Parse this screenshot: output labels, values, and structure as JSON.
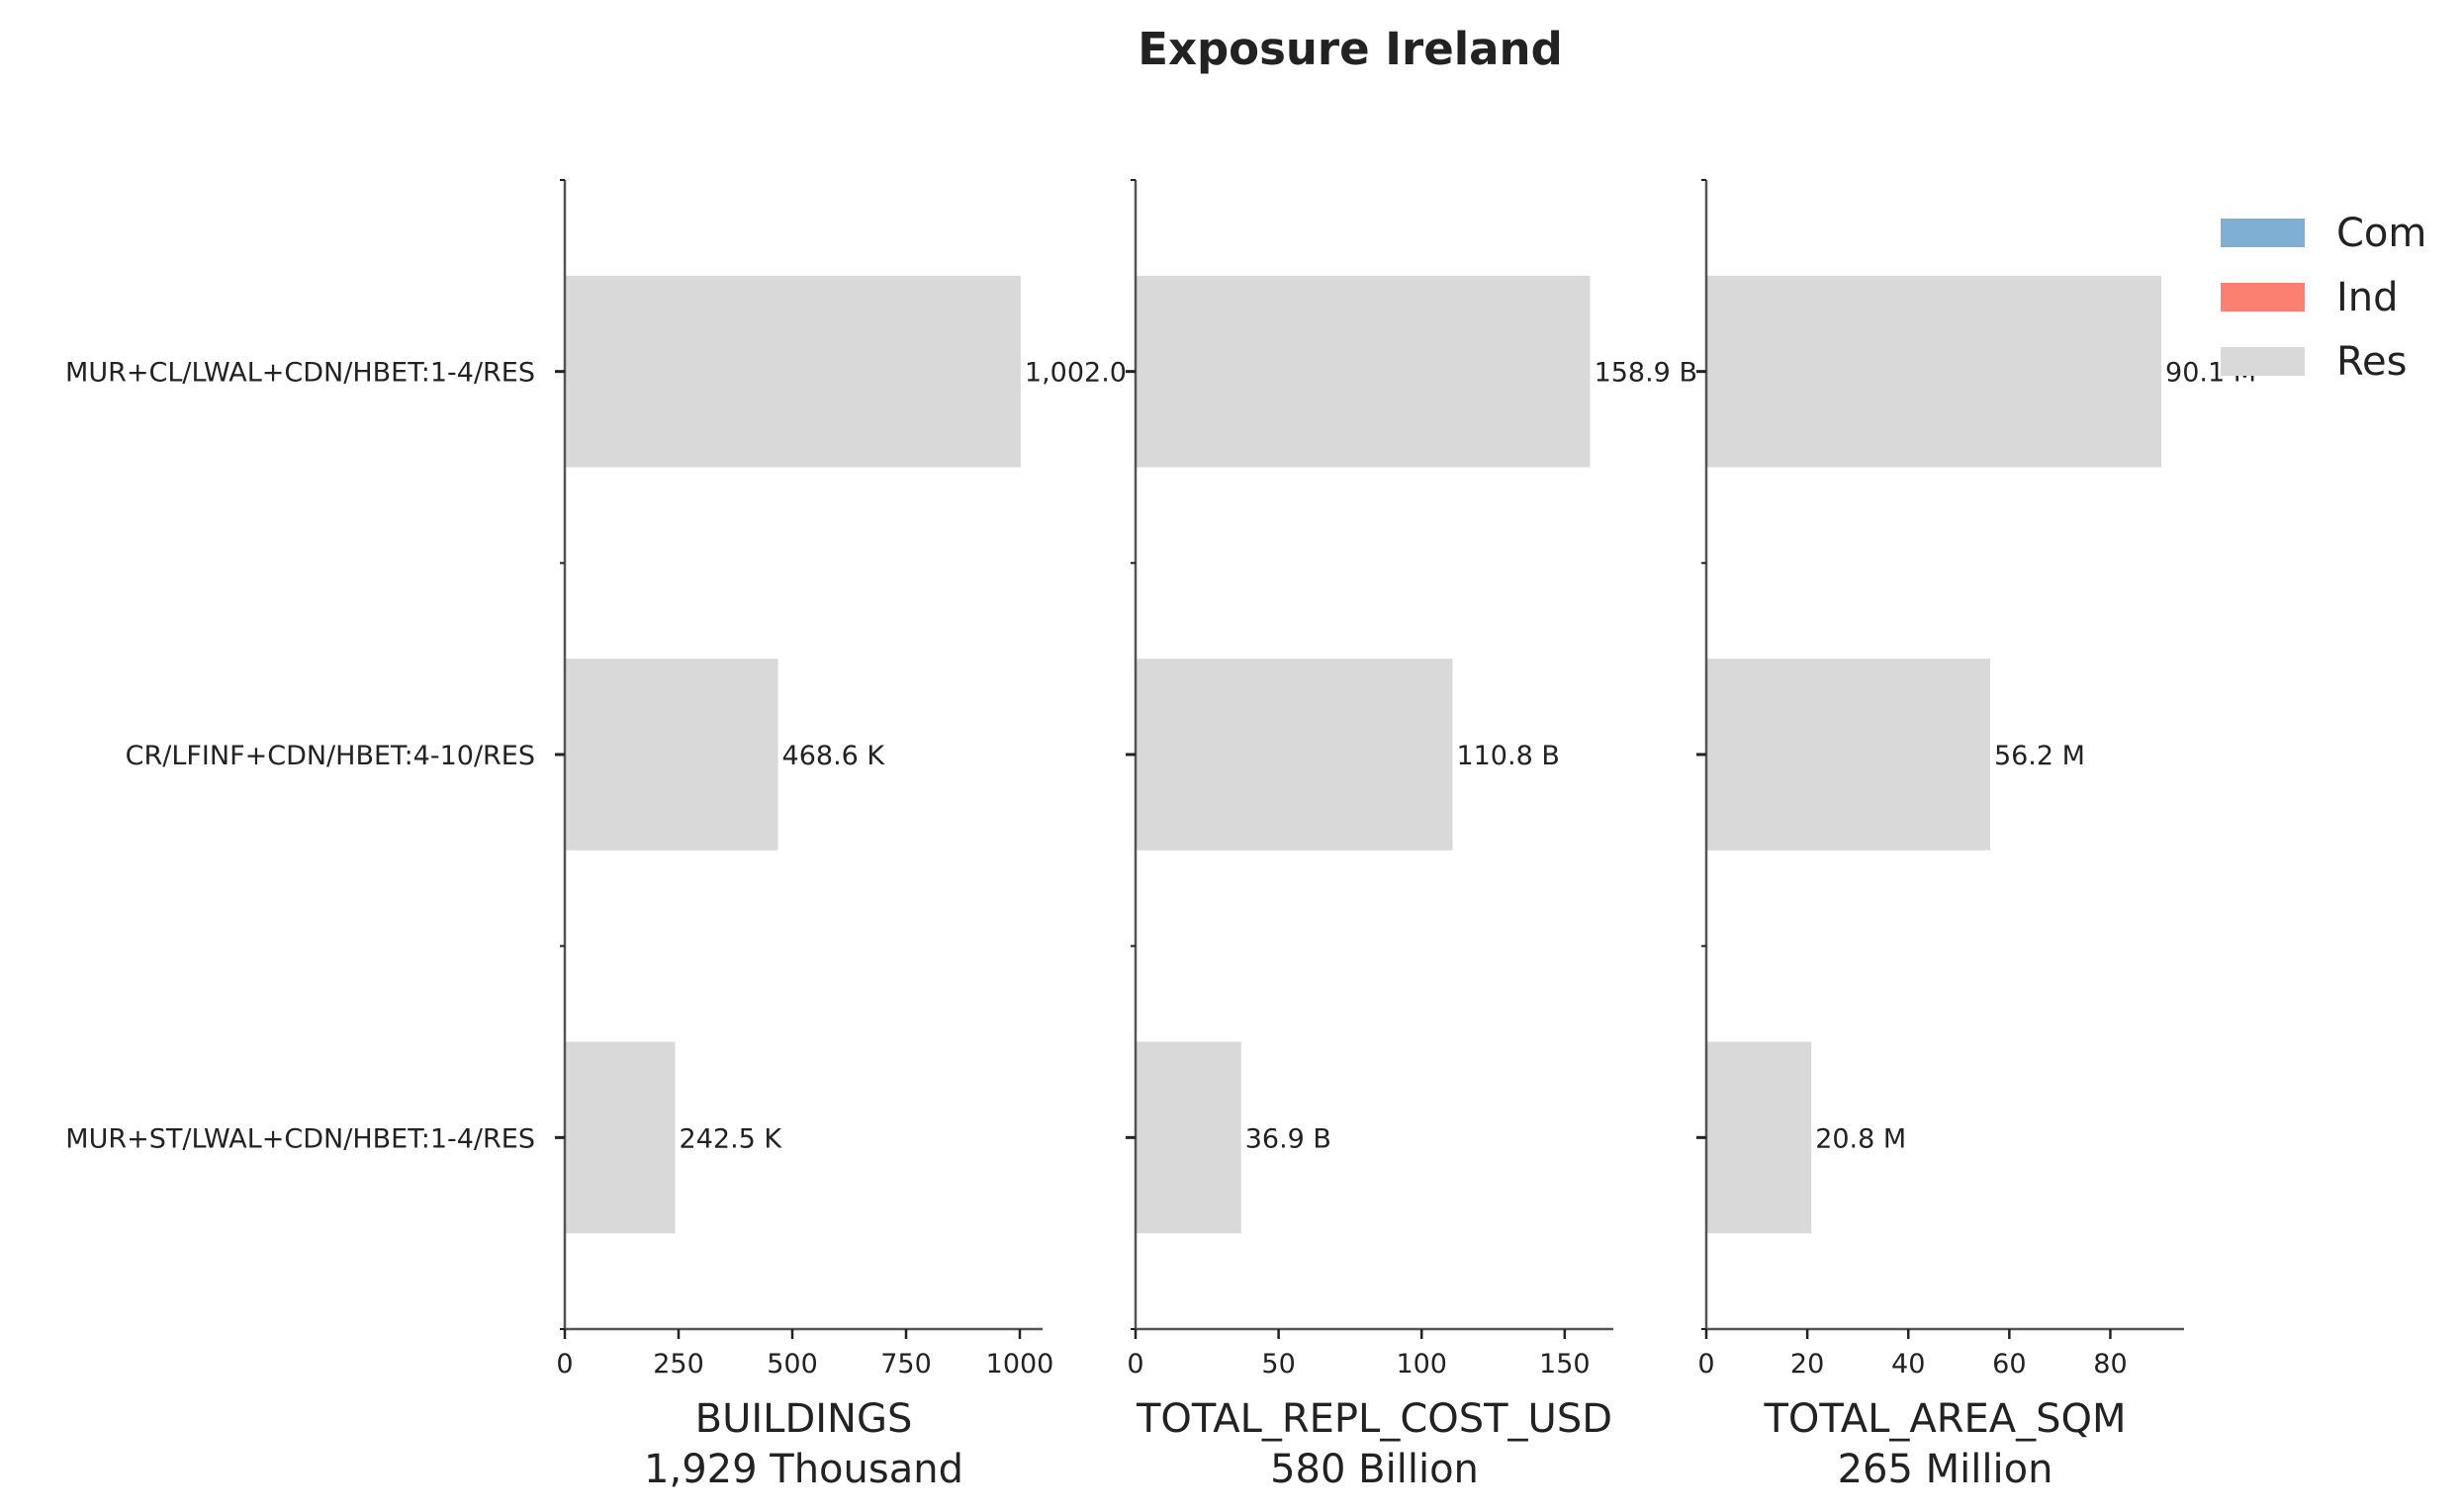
{
  "chart_data": {
    "type": "bar",
    "orientation": "horizontal",
    "title": "Exposure Ireland",
    "categories": [
      "MUR+CL/LWAL+CDN/HBET:1-4/RES",
      "CR/LFINF+CDN/HBET:4-10/RES",
      "MUR+ST/LWAL+CDN/HBET:1-4/RES"
    ],
    "legend": {
      "position": "top-right",
      "entries": [
        {
          "name": "Com",
          "color": "#7fb0d4"
        },
        {
          "name": "Ind",
          "color": "#fb8072"
        },
        {
          "name": "Res",
          "color": "#d9d9d9"
        }
      ]
    },
    "bar_color": "#d9d9d9",
    "panels": [
      {
        "xlabel": "BUILDINGS",
        "subtitle": "1,929 Thousand",
        "xlim": [
          0,
          1050
        ],
        "xticks": [
          0,
          250,
          500,
          750,
          1000
        ],
        "xtick_labels": [
          "0",
          "250",
          "500",
          "750",
          "1000"
        ],
        "series": [
          {
            "name": "Res",
            "values": [
              1002.0,
              468.6,
              242.5
            ]
          }
        ],
        "data_labels": [
          "1,002.0",
          "468.6 K",
          "242.5 K"
        ]
      },
      {
        "xlabel": "TOTAL_REPL_COST_USD",
        "subtitle": "580 Billion",
        "xlim": [
          0,
          167
        ],
        "xticks": [
          0,
          50,
          100,
          150
        ],
        "xtick_labels": [
          "0",
          "50",
          "100",
          "150"
        ],
        "series": [
          {
            "name": "Res",
            "values": [
              158.9,
              110.8,
              36.9
            ]
          }
        ],
        "data_labels": [
          "158.9 B",
          "110.8 B",
          "36.9 B"
        ]
      },
      {
        "xlabel": "TOTAL_AREA_SQM",
        "subtitle": "265 Million",
        "xlim": [
          0,
          94.6
        ],
        "xticks": [
          0,
          20,
          40,
          60,
          80
        ],
        "xtick_labels": [
          "0",
          "20",
          "40",
          "60",
          "80"
        ],
        "series": [
          {
            "name": "Res",
            "values": [
              90.1,
              56.2,
              20.8
            ]
          }
        ],
        "data_labels": [
          "90.1 M",
          "56.2 M",
          "20.8 M"
        ]
      }
    ]
  }
}
